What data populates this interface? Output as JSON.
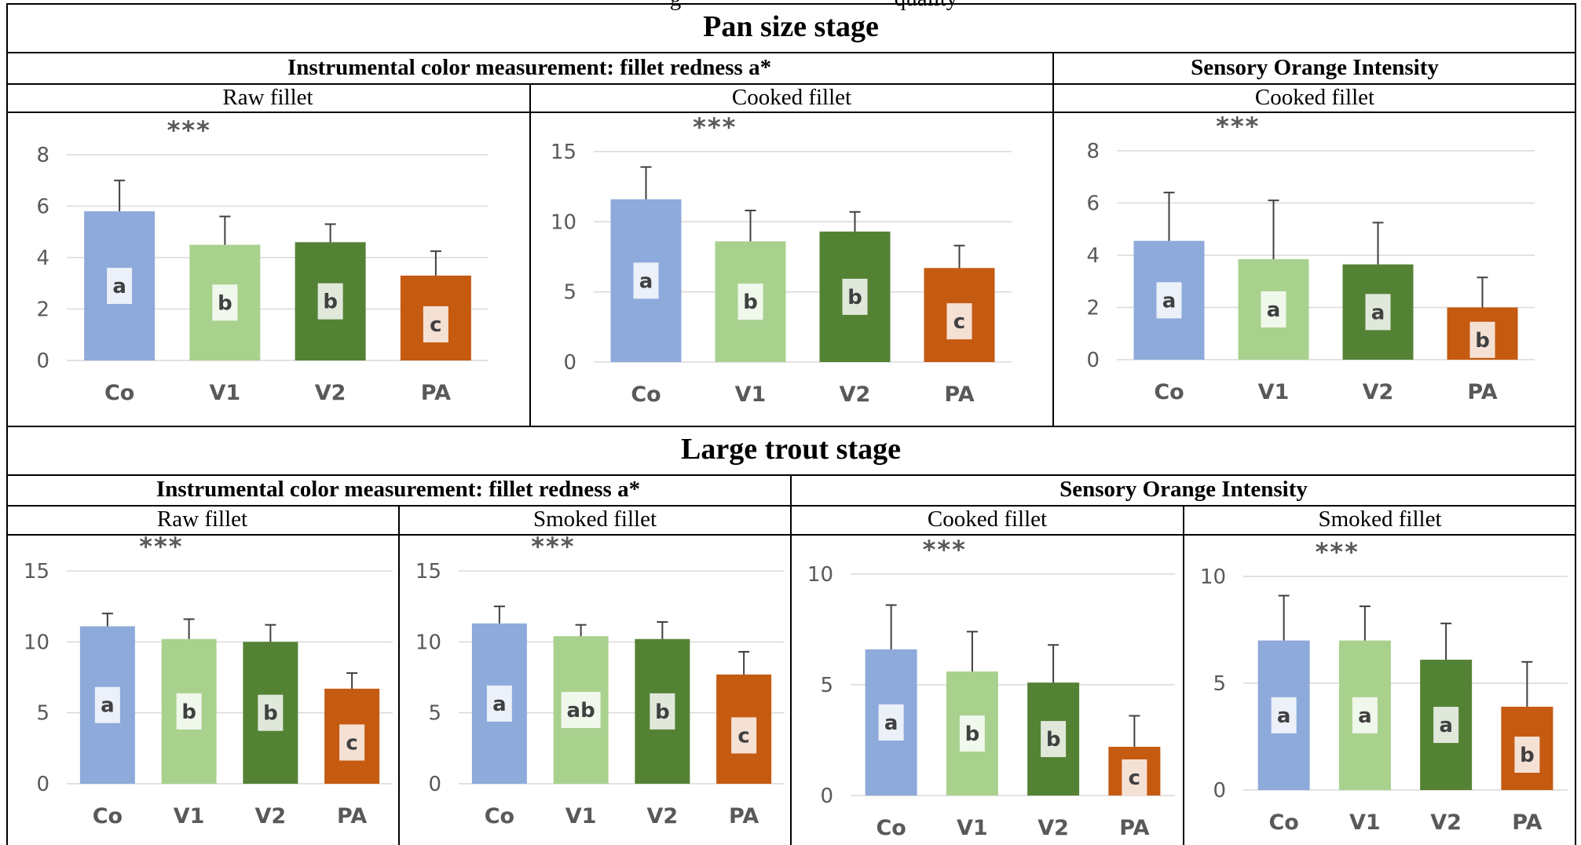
{
  "figure": {
    "top_cutoff_text": "g",
    "top_cutoff_text_right": "quality"
  },
  "stages": [
    {
      "title": "Pan size stage",
      "groups": [
        {
          "title": "Instrumental color measurement: fillet redness a*"
        },
        {
          "title": "Sensory Orange Intensity"
        }
      ]
    },
    {
      "title": "Large trout stage",
      "groups": [
        {
          "title": "Instrumental color measurement: fillet redness a*"
        },
        {
          "title": "Sensory Orange Intensity"
        }
      ]
    }
  ],
  "colors": {
    "Co": "#8eaadb",
    "V1": "#a9d18e",
    "V2": "#548235",
    "PA": "#c55a11",
    "grid": "#d9d9d9",
    "text": "#595959",
    "error_bar": "#404040"
  },
  "chart_data": [
    {
      "type": "bar",
      "stage": "Pan size stage",
      "group": "Instrumental color measurement: fillet redness a*",
      "subtitle": "Raw fillet",
      "significance": "***",
      "categories": [
        "Co",
        "V1",
        "V2",
        "PA"
      ],
      "values": [
        5.8,
        4.5,
        4.6,
        3.3
      ],
      "errors": [
        1.2,
        1.1,
        0.7,
        0.95
      ],
      "letters": [
        "a",
        "b",
        "b",
        "c"
      ],
      "yticks": [
        0,
        2,
        4,
        6,
        8
      ],
      "ylim": [
        0,
        8
      ],
      "grid": true,
      "legend": "none"
    },
    {
      "type": "bar",
      "stage": "Pan size stage",
      "group": "Instrumental color measurement: fillet redness a*",
      "subtitle": "Cooked fillet",
      "significance": "***",
      "categories": [
        "Co",
        "V1",
        "V2",
        "PA"
      ],
      "values": [
        11.6,
        8.6,
        9.3,
        6.7
      ],
      "errors": [
        2.3,
        2.2,
        1.4,
        1.6
      ],
      "letters": [
        "a",
        "b",
        "b",
        "c"
      ],
      "yticks": [
        0,
        5,
        10,
        15
      ],
      "ylim": [
        0,
        15
      ],
      "grid": true,
      "legend": "none"
    },
    {
      "type": "bar",
      "stage": "Pan size stage",
      "group": "Sensory Orange Intensity",
      "subtitle": "Cooked fillet",
      "significance": "***",
      "categories": [
        "Co",
        "V1",
        "V2",
        "PA"
      ],
      "values": [
        4.55,
        3.85,
        3.65,
        2.0
      ],
      "errors": [
        1.85,
        2.25,
        1.6,
        1.15
      ],
      "letters": [
        "a",
        "a",
        "a",
        "b"
      ],
      "yticks": [
        0,
        2,
        4,
        6,
        8
      ],
      "ylim": [
        0,
        8
      ],
      "grid": true,
      "legend": "none"
    },
    {
      "type": "bar",
      "stage": "Large trout stage",
      "group": "Instrumental color measurement: fillet redness a*",
      "subtitle": "Raw fillet",
      "significance": "***",
      "categories": [
        "Co",
        "V1",
        "V2",
        "PA"
      ],
      "values": [
        11.1,
        10.2,
        10.0,
        6.7
      ],
      "errors": [
        0.9,
        1.4,
        1.2,
        1.1
      ],
      "letters": [
        "a",
        "b",
        "b",
        "c"
      ],
      "yticks": [
        0,
        5,
        10,
        15
      ],
      "ylim": [
        0,
        15
      ],
      "grid": true,
      "legend": "none"
    },
    {
      "type": "bar",
      "stage": "Large trout stage",
      "group": "Instrumental color measurement: fillet redness a*",
      "subtitle": "Smoked fillet",
      "significance": "***",
      "categories": [
        "Co",
        "V1",
        "V2",
        "PA"
      ],
      "values": [
        11.3,
        10.4,
        10.2,
        7.7
      ],
      "errors": [
        1.2,
        0.8,
        1.2,
        1.6
      ],
      "letters": [
        "a",
        "ab",
        "b",
        "c"
      ],
      "yticks": [
        0,
        5,
        10,
        15
      ],
      "ylim": [
        0,
        15
      ],
      "grid": true,
      "legend": "none"
    },
    {
      "type": "bar",
      "stage": "Large trout stage",
      "group": "Sensory Orange Intensity",
      "subtitle": "Cooked fillet",
      "significance": "***",
      "categories": [
        "Co",
        "V1",
        "V2",
        "PA"
      ],
      "values": [
        6.6,
        5.6,
        5.1,
        2.2
      ],
      "errors": [
        2.0,
        1.8,
        1.7,
        1.4
      ],
      "letters": [
        "a",
        "b",
        "b",
        "c"
      ],
      "yticks": [
        0,
        5,
        10
      ],
      "ylim": [
        0,
        10
      ],
      "grid": true,
      "legend": "none"
    },
    {
      "type": "bar",
      "stage": "Large trout stage",
      "group": "Sensory Orange Intensity",
      "subtitle": "Smoked fillet",
      "significance": "***",
      "categories": [
        "Co",
        "V1",
        "V2",
        "PA"
      ],
      "values": [
        7.0,
        7.0,
        6.1,
        3.9
      ],
      "errors": [
        2.1,
        1.6,
        1.7,
        2.1
      ],
      "letters": [
        "a",
        "a",
        "a",
        "b"
      ],
      "yticks": [
        0,
        5,
        10
      ],
      "ylim": [
        0,
        10
      ],
      "grid": true,
      "legend": "none"
    }
  ]
}
